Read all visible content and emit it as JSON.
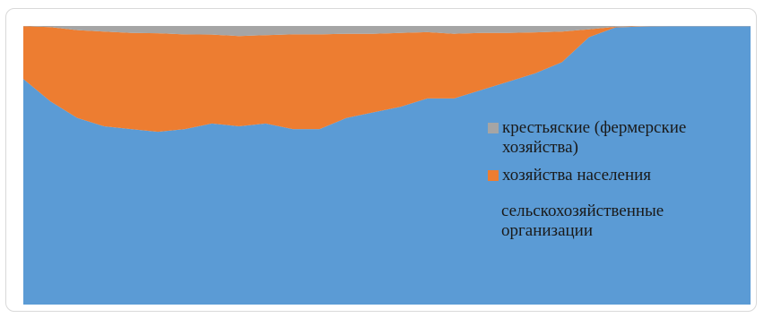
{
  "chart_data": {
    "type": "area",
    "stacked": "percent",
    "grid": false,
    "legend_position": "right",
    "x_count": 28,
    "series": [
      {
        "name": "сельскохозяйственные организации",
        "color": "#5b9bd5",
        "values": [
          81,
          73,
          67,
          64,
          63,
          62,
          63,
          65,
          64,
          65,
          63,
          63,
          67,
          69,
          71,
          74,
          74,
          77,
          80,
          83,
          87,
          96,
          99.5,
          99.8,
          99.9,
          99.9,
          99.9,
          99.9
        ]
      },
      {
        "name": "хозяйства населения",
        "color": "#ed7d31",
        "values": [
          18.9,
          26.6,
          31.5,
          34,
          34.5,
          35.4,
          34,
          31.9,
          32.4,
          31.7,
          34,
          34,
          30.2,
          28.2,
          26.5,
          23.8,
          23.2,
          20.5,
          17.5,
          14.7,
          11,
          2.8,
          0.2,
          0.1,
          0.05,
          0.05,
          0.05,
          0.05
        ]
      },
      {
        "name": "крестьяские (фермерские хозяйства)",
        "color": "#a5a5a5",
        "values": [
          0.1,
          0.4,
          1.5,
          2,
          2.5,
          2.6,
          3,
          3.1,
          3.6,
          3.3,
          3,
          3,
          2.8,
          2.8,
          2.5,
          2.2,
          2.8,
          2.5,
          2.5,
          2.3,
          2,
          1.2,
          0.3,
          0.1,
          0.05,
          0.05,
          0.05,
          0.05
        ]
      }
    ]
  },
  "legend": {
    "items": [
      {
        "label": "крестьяские (фермерские хозяйства)",
        "color": "#a5a5a5"
      },
      {
        "label": "хозяйства населения",
        "color": "#ed7d31"
      },
      {
        "label": "сельскохозяйственные организации",
        "color": "#5b9bd5"
      }
    ]
  }
}
